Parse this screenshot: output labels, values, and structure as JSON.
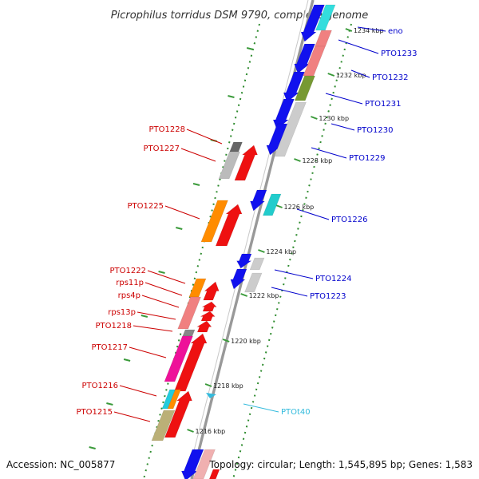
{
  "title": "Picrophilus torridus DSM 9790, complete genome",
  "footer": {
    "accession": "Accession: NC_005877",
    "info": "Topology: circular; Length: 1,545,895 bp; Genes: 1,583"
  },
  "colors": {
    "axis": "#888888",
    "tick": "#3a9a3a",
    "dots": "#2e8b2e",
    "label_forward": "#cc0000",
    "label_reverse": "#0000cc",
    "label_rna": "#33bbdd"
  },
  "kbp_labels": [
    "1234 kbp",
    "1232 kbp",
    "1230 kbp",
    "1228 kbp",
    "1226 kbp",
    "1224 kbp",
    "1222 kbp",
    "1220 kbp",
    "1218 kbp",
    "1216 kbp"
  ],
  "labels_forward": [
    "PTO1228",
    "PTO1227",
    "PTO1225",
    "PTO1222",
    "rps11p",
    "rps4p",
    "rps13p",
    "PTO1218",
    "PTO1217",
    "PTO1216",
    "PTO1215"
  ],
  "labels_reverse": [
    "eno",
    "PTO1233",
    "PTO1232",
    "PTO1231",
    "PTO1230",
    "PTO1229",
    "PTO1226",
    "PTO1224",
    "PTO1223"
  ],
  "labels_rna": [
    "PTOt40"
  ]
}
